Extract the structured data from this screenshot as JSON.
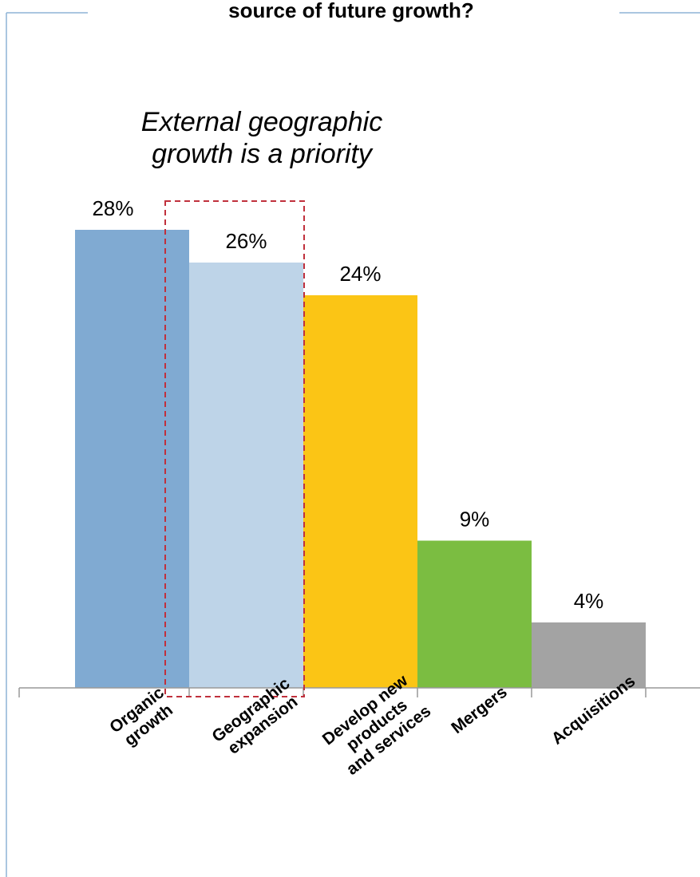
{
  "chart_data": {
    "type": "bar",
    "title": "source of future growth?",
    "annotation": [
      "External geographic",
      "growth is a priority"
    ],
    "categories": [
      [
        "Organic",
        "growth"
      ],
      [
        "Geographic",
        "expansion"
      ],
      [
        "Develop new",
        "products",
        "and services"
      ],
      [
        "Mergers"
      ],
      [
        "Acquisitions"
      ]
    ],
    "values": [
      28,
      26,
      24,
      9,
      4
    ],
    "value_labels": [
      "28%",
      "26%",
      "24%",
      "9%",
      "4%"
    ],
    "colors": [
      "#80aad2",
      "#bed4e8",
      "#fbc515",
      "#7bbd41",
      "#a3a3a3"
    ],
    "highlight_category_index": 1,
    "highlight_color": "#c0303c",
    "frame_color": "#8eb4d6",
    "axis_color": "#999999",
    "grid": false,
    "legend": "none",
    "ylim": [
      0,
      30
    ]
  }
}
